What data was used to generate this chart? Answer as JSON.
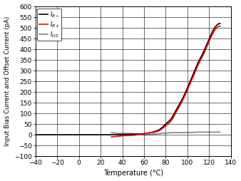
{
  "title": "",
  "xlabel": "Temperature (°C)",
  "ylabel": "Input Bias Current and Offset Current (pA)",
  "xlim": [
    -40,
    140
  ],
  "ylim": [
    -100,
    600
  ],
  "xticks": [
    -40,
    -20,
    0,
    20,
    40,
    60,
    80,
    100,
    120,
    140
  ],
  "yticks": [
    -100,
    -50,
    0,
    50,
    100,
    150,
    200,
    250,
    300,
    350,
    400,
    450,
    500,
    550,
    600
  ],
  "IB_minus_T": [
    -40,
    -20,
    0,
    20,
    30,
    35,
    40,
    50,
    60,
    70,
    75,
    80,
    85,
    90,
    95,
    100,
    105,
    110,
    115,
    120,
    125,
    130
  ],
  "IB_minus_V": [
    0,
    0,
    0,
    0,
    0,
    0,
    1,
    2,
    5,
    15,
    27,
    50,
    75,
    120,
    165,
    220,
    280,
    340,
    390,
    450,
    500,
    520
  ],
  "IB_plus_T": [
    30,
    35,
    40,
    50,
    60,
    70,
    75,
    80,
    85,
    90,
    95,
    100,
    105,
    110,
    115,
    120,
    125,
    130
  ],
  "IB_plus_V": [
    -10,
    -8,
    -5,
    -3,
    5,
    12,
    22,
    42,
    65,
    110,
    155,
    210,
    268,
    328,
    378,
    438,
    488,
    508
  ],
  "IOS_T": [
    30,
    40,
    50,
    60,
    70,
    80,
    90,
    100,
    110,
    120,
    125,
    130
  ],
  "IOS_V": [
    10,
    6,
    5,
    0,
    3,
    8,
    10,
    10,
    12,
    12,
    12,
    12
  ],
  "legend_colors": [
    "black",
    "red",
    "gray"
  ],
  "background_color": "#ffffff",
  "line_width": 1.2,
  "grid_color": "#000000"
}
